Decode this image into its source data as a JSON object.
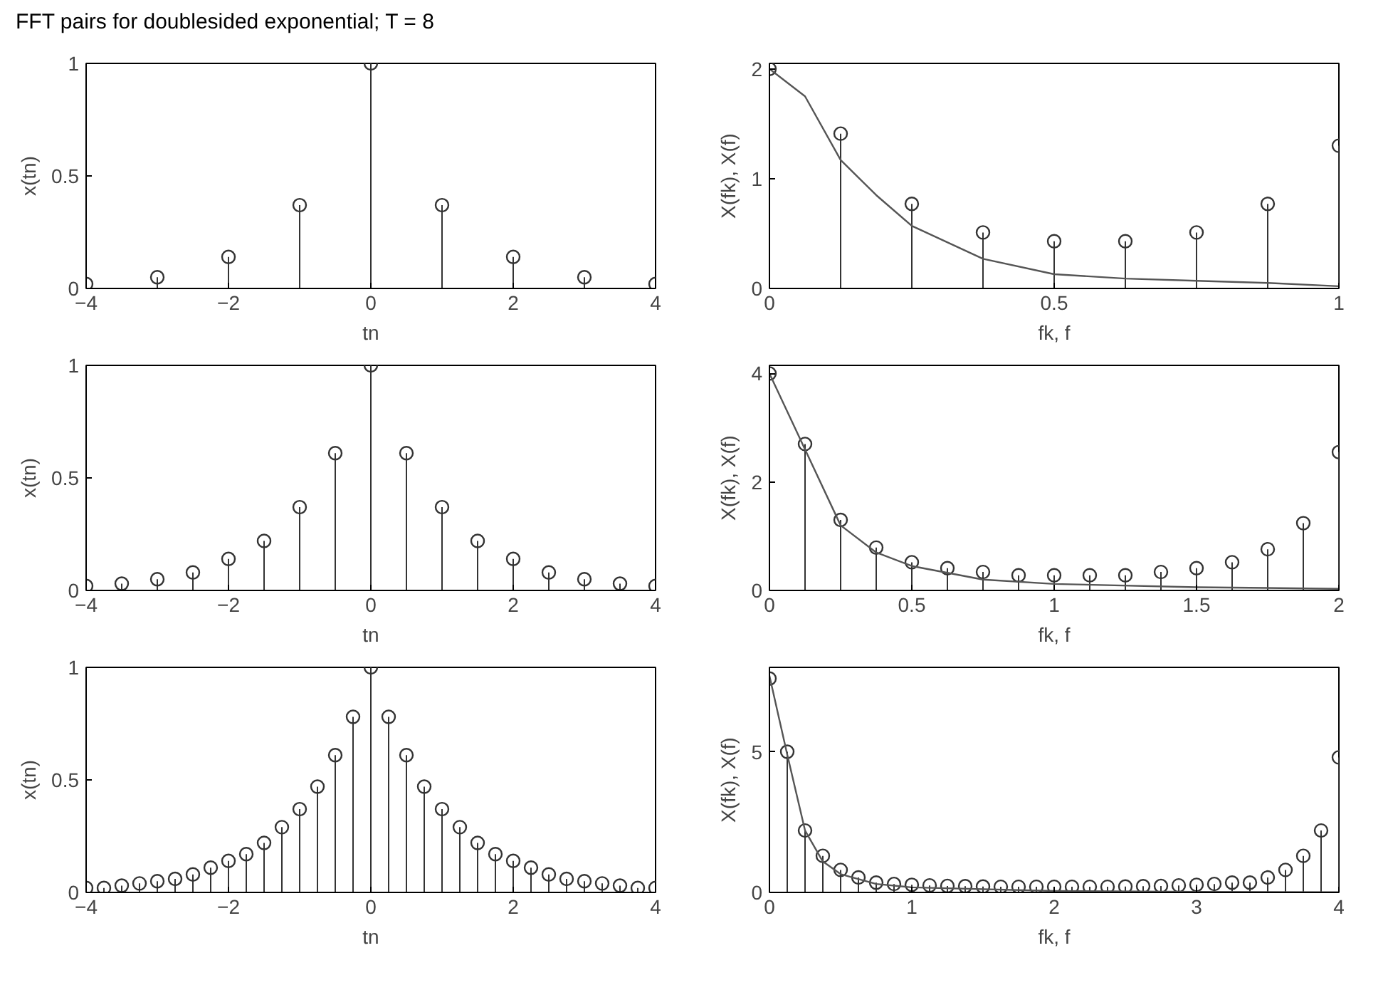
{
  "chart_data": [
    {
      "type": "lollipop",
      "title": "FFT pairs for doublesided exponential; T = 8",
      "xlabel": "tn",
      "ylabel": "x(tn)",
      "xlim": [
        -4,
        4
      ],
      "ylim": [
        0,
        1
      ],
      "xticks": [
        -4,
        -2,
        0,
        2,
        4
      ],
      "yticks": [
        0,
        0.5,
        1
      ],
      "marker": "circle",
      "series": [
        {
          "color": "#333333",
          "x": [
            -4,
            -3,
            -2,
            -1,
            0,
            1,
            2,
            3,
            4
          ],
          "values": [
            0.02,
            0.05,
            0.14,
            0.37,
            1,
            0.37,
            0.14,
            0.05,
            0.02
          ]
        }
      ]
    },
    {
      "type": "lollipop",
      "xlabel": "fk, f",
      "ylabel": "X(fk), X(f)",
      "xlim": [
        0,
        1
      ],
      "ylim": [
        0,
        2.05
      ],
      "xticks": [
        0,
        0.5,
        1
      ],
      "yticks": [
        0,
        1,
        2
      ],
      "marker": "circle",
      "series": [
        {
          "color": "#333333",
          "x": [
            0,
            0.125,
            0.25,
            0.375,
            0.5,
            0.625,
            0.75,
            0.875,
            1
          ],
          "values": [
            2.0,
            1.41,
            0.77,
            0.51,
            0.43,
            0.43,
            0.51,
            0.77,
            1.3
          ]
        },
        {
          "type": "line",
          "marker": "none",
          "color": "#555555",
          "x": [
            0,
            0.0625,
            0.125,
            0.1875,
            0.25,
            0.375,
            0.5,
            0.625,
            0.75,
            0.875,
            1
          ],
          "values": [
            2.0,
            1.75,
            1.17,
            0.85,
            0.57,
            0.27,
            0.13,
            0.09,
            0.07,
            0.05,
            0.02
          ]
        }
      ]
    },
    {
      "type": "lollipop",
      "xlabel": "tn",
      "ylabel": "x(tn)",
      "xlim": [
        -4,
        4
      ],
      "ylim": [
        0,
        1
      ],
      "xticks": [
        -4,
        -2,
        0,
        2,
        4
      ],
      "yticks": [
        0,
        0.5,
        1
      ],
      "marker": "circle",
      "series": [
        {
          "color": "#333333",
          "x": [
            -4,
            -3.5,
            -3,
            -2.5,
            -2,
            -1.5,
            -1,
            -0.5,
            0,
            0.5,
            1,
            1.5,
            2,
            2.5,
            3,
            3.5,
            4
          ],
          "values": [
            0.02,
            0.03,
            0.05,
            0.08,
            0.14,
            0.22,
            0.37,
            0.61,
            1,
            0.61,
            0.37,
            0.22,
            0.14,
            0.08,
            0.05,
            0.03,
            0.02
          ]
        }
      ]
    },
    {
      "type": "lollipop",
      "xlabel": "fk, f",
      "ylabel": "X(fk), X(f)",
      "xlim": [
        0,
        2
      ],
      "ylim": [
        0,
        4.15
      ],
      "xticks": [
        0,
        0.5,
        1,
        1.5,
        2
      ],
      "yticks": [
        0,
        2,
        4
      ],
      "marker": "circle",
      "series": [
        {
          "color": "#333333",
          "x": [
            0,
            0.125,
            0.25,
            0.375,
            0.5,
            0.625,
            0.75,
            0.875,
            1,
            1.125,
            1.25,
            1.375,
            1.5,
            1.625,
            1.75,
            1.875,
            2
          ],
          "values": [
            4.0,
            2.7,
            1.3,
            0.79,
            0.52,
            0.41,
            0.34,
            0.28,
            0.28,
            0.28,
            0.28,
            0.34,
            0.41,
            0.52,
            0.76,
            1.24,
            2.55
          ]
        },
        {
          "type": "line",
          "marker": "none",
          "color": "#555555",
          "x": [
            0,
            0.125,
            0.25,
            0.375,
            0.5,
            0.75,
            1,
            1.5,
            2
          ],
          "values": [
            4.0,
            2.6,
            1.2,
            0.7,
            0.45,
            0.2,
            0.12,
            0.06,
            0.03
          ]
        }
      ]
    },
    {
      "type": "lollipop",
      "xlabel": "tn",
      "ylabel": "x(tn)",
      "xlim": [
        -4,
        4
      ],
      "ylim": [
        0,
        1
      ],
      "xticks": [
        -4,
        -2,
        0,
        2,
        4
      ],
      "yticks": [
        0,
        0.5,
        1
      ],
      "marker": "circle",
      "series": [
        {
          "color": "#333333",
          "x": [
            -4,
            -3.75,
            -3.5,
            -3.25,
            -3,
            -2.75,
            -2.5,
            -2.25,
            -2,
            -1.75,
            -1.5,
            -1.25,
            -1,
            -0.75,
            -0.5,
            -0.25,
            0,
            0.25,
            0.5,
            0.75,
            1,
            1.25,
            1.5,
            1.75,
            2,
            2.25,
            2.5,
            2.75,
            3,
            3.25,
            3.5,
            3.75,
            4
          ],
          "values": [
            0.02,
            0.02,
            0.03,
            0.04,
            0.05,
            0.06,
            0.08,
            0.11,
            0.14,
            0.17,
            0.22,
            0.29,
            0.37,
            0.47,
            0.61,
            0.78,
            1,
            0.78,
            0.61,
            0.47,
            0.37,
            0.29,
            0.22,
            0.17,
            0.14,
            0.11,
            0.08,
            0.06,
            0.05,
            0.04,
            0.03,
            0.02,
            0.02
          ]
        }
      ]
    },
    {
      "type": "lollipop",
      "xlabel": "fk, f",
      "ylabel": "X(fk), X(f)",
      "xlim": [
        0,
        4
      ],
      "ylim": [
        0,
        8
      ],
      "xticks": [
        0,
        1,
        2,
        3,
        4
      ],
      "yticks": [
        0,
        5
      ],
      "marker": "circle",
      "series": [
        {
          "color": "#333333",
          "x": [
            0,
            0.125,
            0.25,
            0.375,
            0.5,
            0.625,
            0.75,
            0.875,
            1,
            1.125,
            1.25,
            1.375,
            1.5,
            1.625,
            1.75,
            1.875,
            2,
            2.125,
            2.25,
            2.375,
            2.5,
            2.625,
            2.75,
            2.875,
            3,
            3.125,
            3.25,
            3.375,
            3.5,
            3.625,
            3.75,
            3.875,
            4
          ],
          "values": [
            7.6,
            5.0,
            2.2,
            1.3,
            0.8,
            0.53,
            0.35,
            0.3,
            0.27,
            0.25,
            0.23,
            0.22,
            0.21,
            0.2,
            0.2,
            0.2,
            0.2,
            0.2,
            0.2,
            0.2,
            0.21,
            0.22,
            0.23,
            0.25,
            0.27,
            0.3,
            0.35,
            0.35,
            0.53,
            0.8,
            1.3,
            2.2,
            4.8
          ]
        },
        {
          "type": "line",
          "marker": "none",
          "color": "#555555",
          "x": [
            0,
            0.0625,
            0.125,
            0.25,
            0.375,
            0.5,
            0.75,
            1,
            2,
            3,
            4
          ],
          "values": [
            7.7,
            6.3,
            4.9,
            2.2,
            1.1,
            0.65,
            0.3,
            0.18,
            0.05,
            0.02,
            0.01
          ]
        }
      ]
    }
  ]
}
